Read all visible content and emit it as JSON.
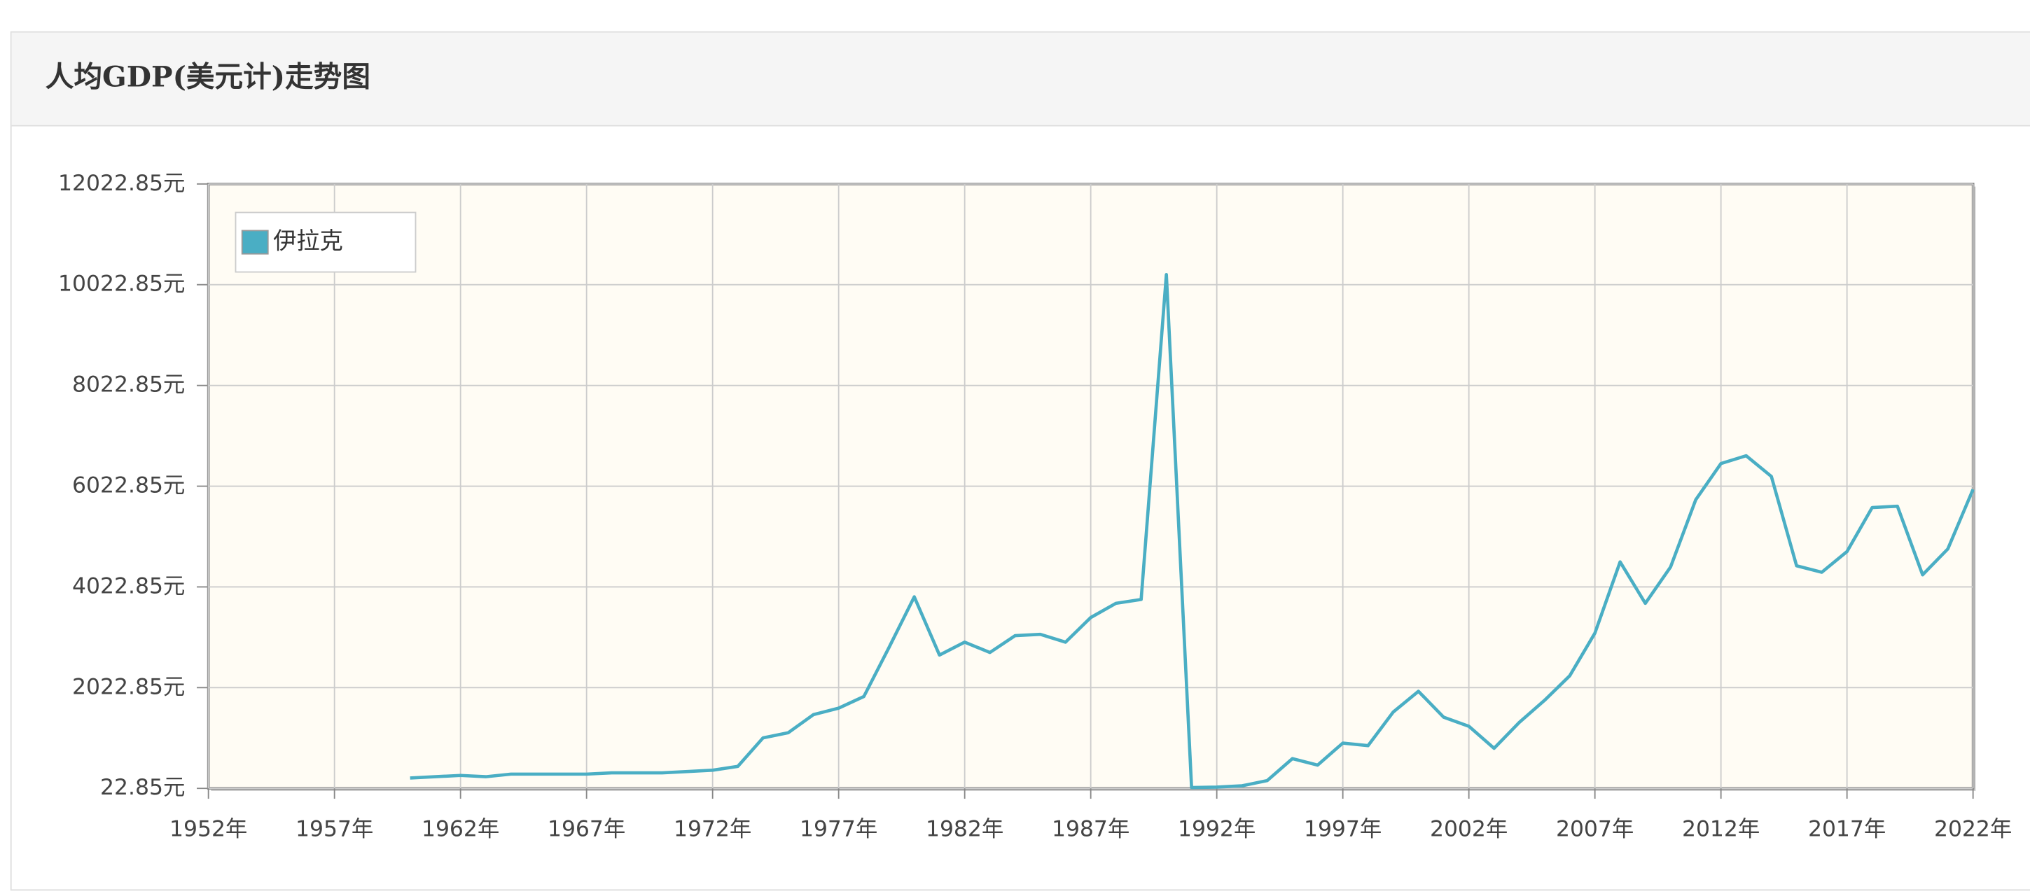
{
  "chart_data": {
    "type": "line",
    "title": "人均GDP(美元计)走势图",
    "x": [
      1960,
      1961,
      1962,
      1963,
      1964,
      1965,
      1966,
      1967,
      1968,
      1969,
      1970,
      1971,
      1972,
      1973,
      1974,
      1975,
      1976,
      1977,
      1978,
      1979,
      1980,
      1981,
      1982,
      1983,
      1984,
      1985,
      1986,
      1987,
      1988,
      1989,
      1990,
      1991,
      1992,
      1993,
      1994,
      1995,
      1996,
      1997,
      1998,
      1999,
      2000,
      2001,
      2002,
      2003,
      2004,
      2005,
      2006,
      2007,
      2008,
      2009,
      2010,
      2011,
      2012,
      2013,
      2014,
      2015,
      2016,
      2017,
      2018,
      2019,
      2020,
      2021,
      2022
    ],
    "series": [
      {
        "name": "伊拉克",
        "color": "#4aaec4",
        "values": [
          228,
          254,
          280,
          254,
          306,
          306,
          306,
          306,
          331,
          331,
          331,
          357,
          383,
          460,
          1025,
          1128,
          1487,
          1616,
          1847,
          2823,
          3826,
          2670,
          2926,
          2721,
          3055,
          3081,
          2926,
          3415,
          3697,
          3774,
          10224,
          40,
          48,
          74,
          177,
          614,
          485,
          922,
          871,
          1539,
          1950,
          1436,
          1256,
          819,
          1333,
          1770,
          2258,
          3106,
          4520,
          3697,
          4417,
          5753,
          6472,
          6627,
          6216,
          4443,
          4314,
          4725,
          5599,
          5625,
          4263,
          4777,
          5959
        ]
      }
    ],
    "xlim": [
      1952,
      2022
    ],
    "xticks": [
      {
        "value": 1952,
        "label": "1952年"
      },
      {
        "value": 1957,
        "label": "1957年"
      },
      {
        "value": 1962,
        "label": "1962年"
      },
      {
        "value": 1967,
        "label": "1967年"
      },
      {
        "value": 1972,
        "label": "1972年"
      },
      {
        "value": 1977,
        "label": "1977年"
      },
      {
        "value": 1982,
        "label": "1982年"
      },
      {
        "value": 1987,
        "label": "1987年"
      },
      {
        "value": 1992,
        "label": "1992年"
      },
      {
        "value": 1997,
        "label": "1997年"
      },
      {
        "value": 2002,
        "label": "2002年"
      },
      {
        "value": 2007,
        "label": "2007年"
      },
      {
        "value": 2012,
        "label": "2012年"
      },
      {
        "value": 2017,
        "label": "2017年"
      },
      {
        "value": 2022,
        "label": "2022年"
      }
    ],
    "ylim": [
      22.85,
      12022.85
    ],
    "yticks": [
      {
        "value": 22.85,
        "label": "22.85元"
      },
      {
        "value": 2022.85,
        "label": "2022.85元"
      },
      {
        "value": 4022.85,
        "label": "4022.85元"
      },
      {
        "value": 6022.85,
        "label": "6022.85元"
      },
      {
        "value": 8022.85,
        "label": "8022.85元"
      },
      {
        "value": 10022.85,
        "label": "10022.85元"
      },
      {
        "value": 12022.85,
        "label": "12022.85元"
      }
    ],
    "grid": true,
    "legend": "upper left"
  }
}
